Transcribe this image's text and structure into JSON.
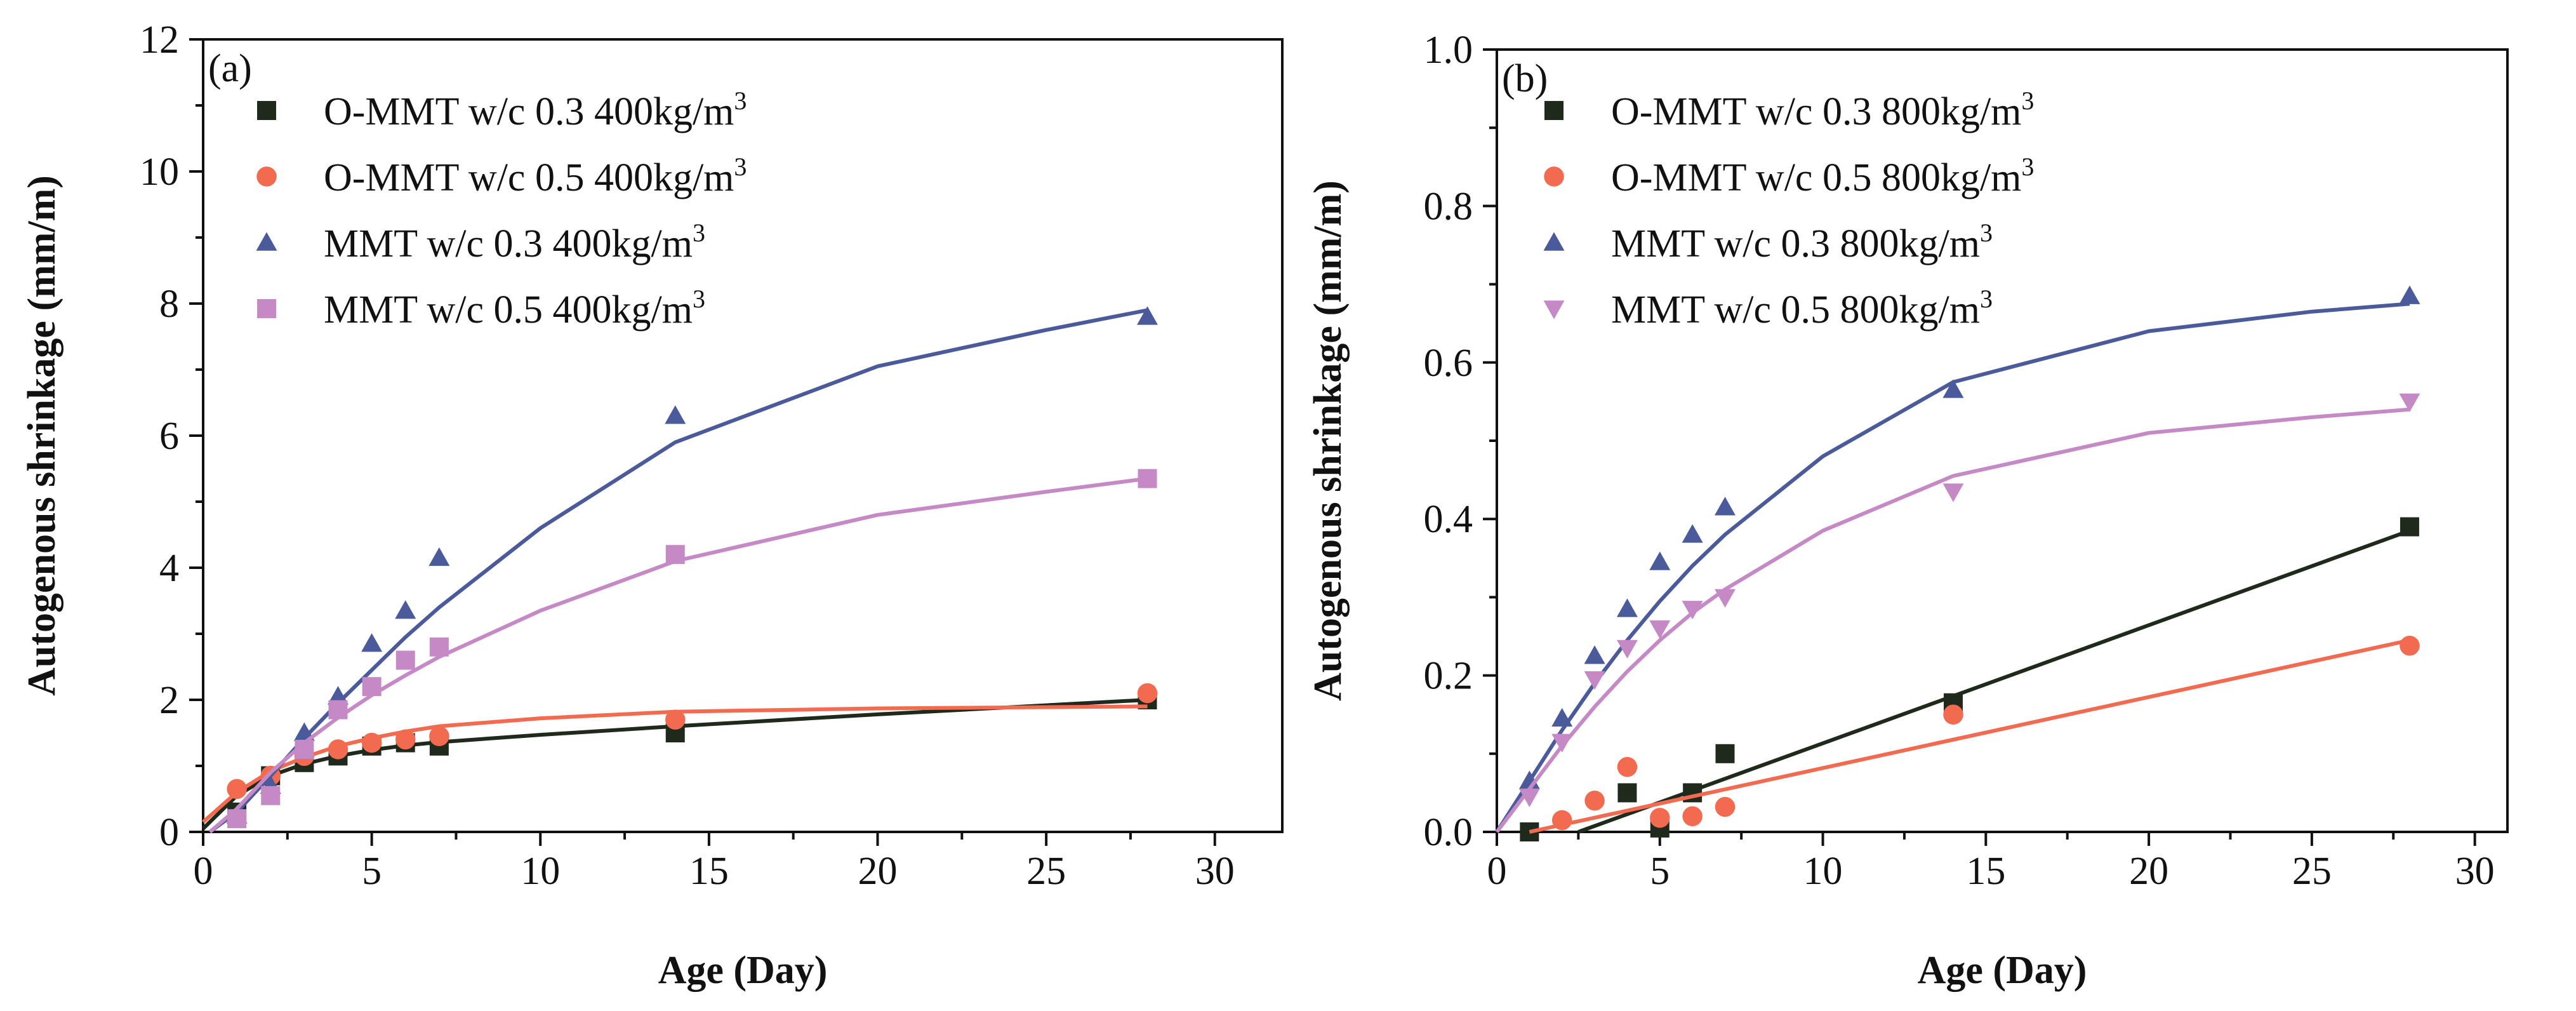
{
  "chart_data": [
    {
      "type": "scatter",
      "panel_label": "(a)",
      "xlabel": "Age (Day)",
      "ylabel": "Autogenous shrinkage (mm/m)",
      "xlim": [
        0,
        32
      ],
      "ylim": [
        0,
        12
      ],
      "xticks": [
        "0",
        "5",
        "10",
        "15",
        "20",
        "25",
        "30"
      ],
      "yticks": [
        "0",
        "2",
        "4",
        "6",
        "8",
        "10",
        "12"
      ],
      "grid": false,
      "legend_position": "top-left",
      "series": [
        {
          "name_main": "O-MMT w/c 0.3 400kg/m",
          "name_sup": "3",
          "marker": "square",
          "color": "#1f2a1c",
          "x": [
            1,
            2,
            3,
            4,
            5,
            6,
            7,
            14,
            28
          ],
          "y": [
            0.3,
            0.85,
            1.05,
            1.15,
            1.3,
            1.35,
            1.3,
            1.5,
            2.0
          ],
          "fit": [
            [
              0,
              0.05
            ],
            [
              1,
              0.55
            ],
            [
              2,
              0.85
            ],
            [
              3,
              1.03
            ],
            [
              4,
              1.15
            ],
            [
              5,
              1.24
            ],
            [
              6,
              1.31
            ],
            [
              7,
              1.36
            ],
            [
              10,
              1.47
            ],
            [
              14,
              1.6
            ],
            [
              20,
              1.78
            ],
            [
              28,
              2.0
            ]
          ]
        },
        {
          "name_main": "O-MMT w/c 0.5 400kg/m",
          "name_sup": "3",
          "marker": "circle",
          "color": "#f26a4f",
          "x": [
            1,
            2,
            3,
            4,
            5,
            6,
            7,
            14,
            28
          ],
          "y": [
            0.65,
            0.85,
            1.15,
            1.25,
            1.35,
            1.4,
            1.45,
            1.7,
            2.1
          ],
          "fit": [
            [
              0,
              0.15
            ],
            [
              1,
              0.6
            ],
            [
              2,
              0.92
            ],
            [
              3,
              1.13
            ],
            [
              4,
              1.3
            ],
            [
              5,
              1.42
            ],
            [
              6,
              1.52
            ],
            [
              7,
              1.6
            ],
            [
              10,
              1.72
            ],
            [
              14,
              1.82
            ],
            [
              20,
              1.87
            ],
            [
              28,
              1.9
            ]
          ]
        },
        {
          "name_main": "MMT w/c 0.3 400kg/m",
          "name_sup": "3",
          "marker": "triangle",
          "color": "#4a5a9a",
          "x": [
            1,
            2,
            3,
            4,
            5,
            6,
            7,
            14,
            28
          ],
          "y": [
            0.25,
            0.7,
            1.5,
            2.05,
            2.85,
            3.35,
            4.15,
            6.3,
            7.8
          ],
          "fit": [
            [
              0.2,
              0
            ],
            [
              1,
              0.3
            ],
            [
              2,
              0.85
            ],
            [
              3,
              1.42
            ],
            [
              4,
              1.95
            ],
            [
              5,
              2.45
            ],
            [
              6,
              2.95
            ],
            [
              7,
              3.4
            ],
            [
              10,
              4.6
            ],
            [
              14,
              5.9
            ],
            [
              20,
              7.05
            ],
            [
              25,
              7.6
            ],
            [
              28,
              7.9
            ]
          ]
        },
        {
          "name_main": "MMT w/c 0.5 400kg/m",
          "name_sup": "3",
          "marker": "square",
          "color": "#c58ac6",
          "x": [
            1,
            2,
            3,
            4,
            5,
            6,
            7,
            14,
            28
          ],
          "y": [
            0.2,
            0.55,
            1.25,
            1.85,
            2.2,
            2.6,
            2.8,
            4.2,
            5.35
          ],
          "fit": [
            [
              0.2,
              0
            ],
            [
              1,
              0.35
            ],
            [
              2,
              0.9
            ],
            [
              3,
              1.35
            ],
            [
              4,
              1.73
            ],
            [
              5,
              2.07
            ],
            [
              6,
              2.37
            ],
            [
              7,
              2.65
            ],
            [
              10,
              3.35
            ],
            [
              14,
              4.1
            ],
            [
              20,
              4.8
            ],
            [
              25,
              5.15
            ],
            [
              28,
              5.35
            ]
          ]
        }
      ]
    },
    {
      "type": "scatter",
      "panel_label": "(b)",
      "xlabel": "Age (Day)",
      "ylabel": "Autogenous shrinkage (mm/m)",
      "xlim": [
        0,
        31
      ],
      "ylim": [
        0,
        1.0
      ],
      "xticks": [
        "0",
        "5",
        "10",
        "15",
        "20",
        "25",
        "30"
      ],
      "yticks": [
        "0.0",
        "0.2",
        "0.4",
        "0.6",
        "0.8",
        "1.0"
      ],
      "grid": false,
      "legend_position": "top-left",
      "series": [
        {
          "name_main": "O-MMT w/c 0.3 800kg/m",
          "name_sup": "3",
          "marker": "square",
          "color": "#1f2a1c",
          "x": [
            1,
            4,
            5,
            6,
            7,
            14,
            28
          ],
          "y": [
            0.0,
            0.05,
            0.005,
            0.05,
            0.1,
            0.165,
            0.39
          ],
          "fit": [
            [
              2.5,
              0
            ],
            [
              28,
              0.385
            ]
          ]
        },
        {
          "name_main": "O-MMT w/c 0.5 800kg/m",
          "name_sup": "3",
          "marker": "circle",
          "color": "#f26a4f",
          "x": [
            2,
            3,
            4,
            5,
            6,
            7,
            14,
            28
          ],
          "y": [
            0.015,
            0.04,
            0.083,
            0.018,
            0.02,
            0.032,
            0.15,
            0.238
          ],
          "fit": [
            [
              1,
              0
            ],
            [
              28,
              0.245
            ]
          ]
        },
        {
          "name_main": "MMT w/c 0.3 800kg/m",
          "name_sup": "3",
          "marker": "triangle",
          "color": "#4a5a9a",
          "x": [
            1,
            2,
            3,
            4,
            5,
            6,
            7,
            14,
            28
          ],
          "y": [
            0.065,
            0.145,
            0.225,
            0.285,
            0.345,
            0.38,
            0.415,
            0.565,
            0.685
          ],
          "fit": [
            [
              0,
              0
            ],
            [
              1,
              0.065
            ],
            [
              2,
              0.13
            ],
            [
              3,
              0.19
            ],
            [
              4,
              0.245
            ],
            [
              5,
              0.295
            ],
            [
              6,
              0.34
            ],
            [
              7,
              0.38
            ],
            [
              10,
              0.48
            ],
            [
              14,
              0.575
            ],
            [
              20,
              0.64
            ],
            [
              25,
              0.665
            ],
            [
              28,
              0.675
            ]
          ]
        },
        {
          "name_main": "MMT w/c 0.5 800kg/m",
          "name_sup": "3",
          "marker": "triangle-down",
          "color": "#c58ac6",
          "x": [
            1,
            2,
            3,
            4,
            5,
            6,
            7,
            14,
            28
          ],
          "y": [
            0.045,
            0.115,
            0.195,
            0.235,
            0.26,
            0.285,
            0.3,
            0.435,
            0.55
          ],
          "fit": [
            [
              0,
              0
            ],
            [
              1,
              0.055
            ],
            [
              2,
              0.11
            ],
            [
              3,
              0.16
            ],
            [
              4,
              0.205
            ],
            [
              5,
              0.245
            ],
            [
              6,
              0.28
            ],
            [
              7,
              0.31
            ],
            [
              10,
              0.385
            ],
            [
              14,
              0.455
            ],
            [
              20,
              0.51
            ],
            [
              25,
              0.53
            ],
            [
              28,
              0.54
            ]
          ]
        }
      ]
    }
  ]
}
